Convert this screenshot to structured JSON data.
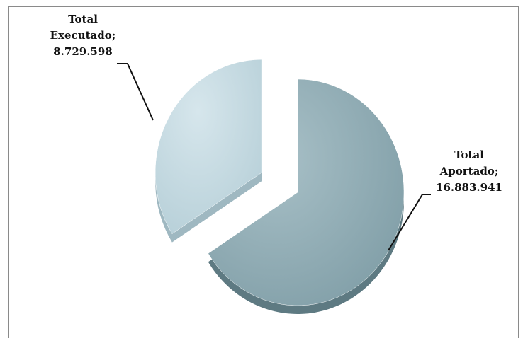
{
  "chart_data": {
    "type": "pie",
    "style": "3d-exploded",
    "title": "",
    "legend": "none",
    "slices": [
      {
        "category": "Total Aportado",
        "label_lines": [
          "Total",
          "Aportado;",
          "16.883.941"
        ],
        "value": 16883941,
        "value_text": "16.883.941",
        "color": "#8aa9b1"
      },
      {
        "category": "Total Executado",
        "label_lines": [
          "Total",
          "Executado;",
          "8.729.598"
        ],
        "value": 8729598,
        "value_text": "8.729.598",
        "color": "#bfd6df"
      }
    ]
  }
}
